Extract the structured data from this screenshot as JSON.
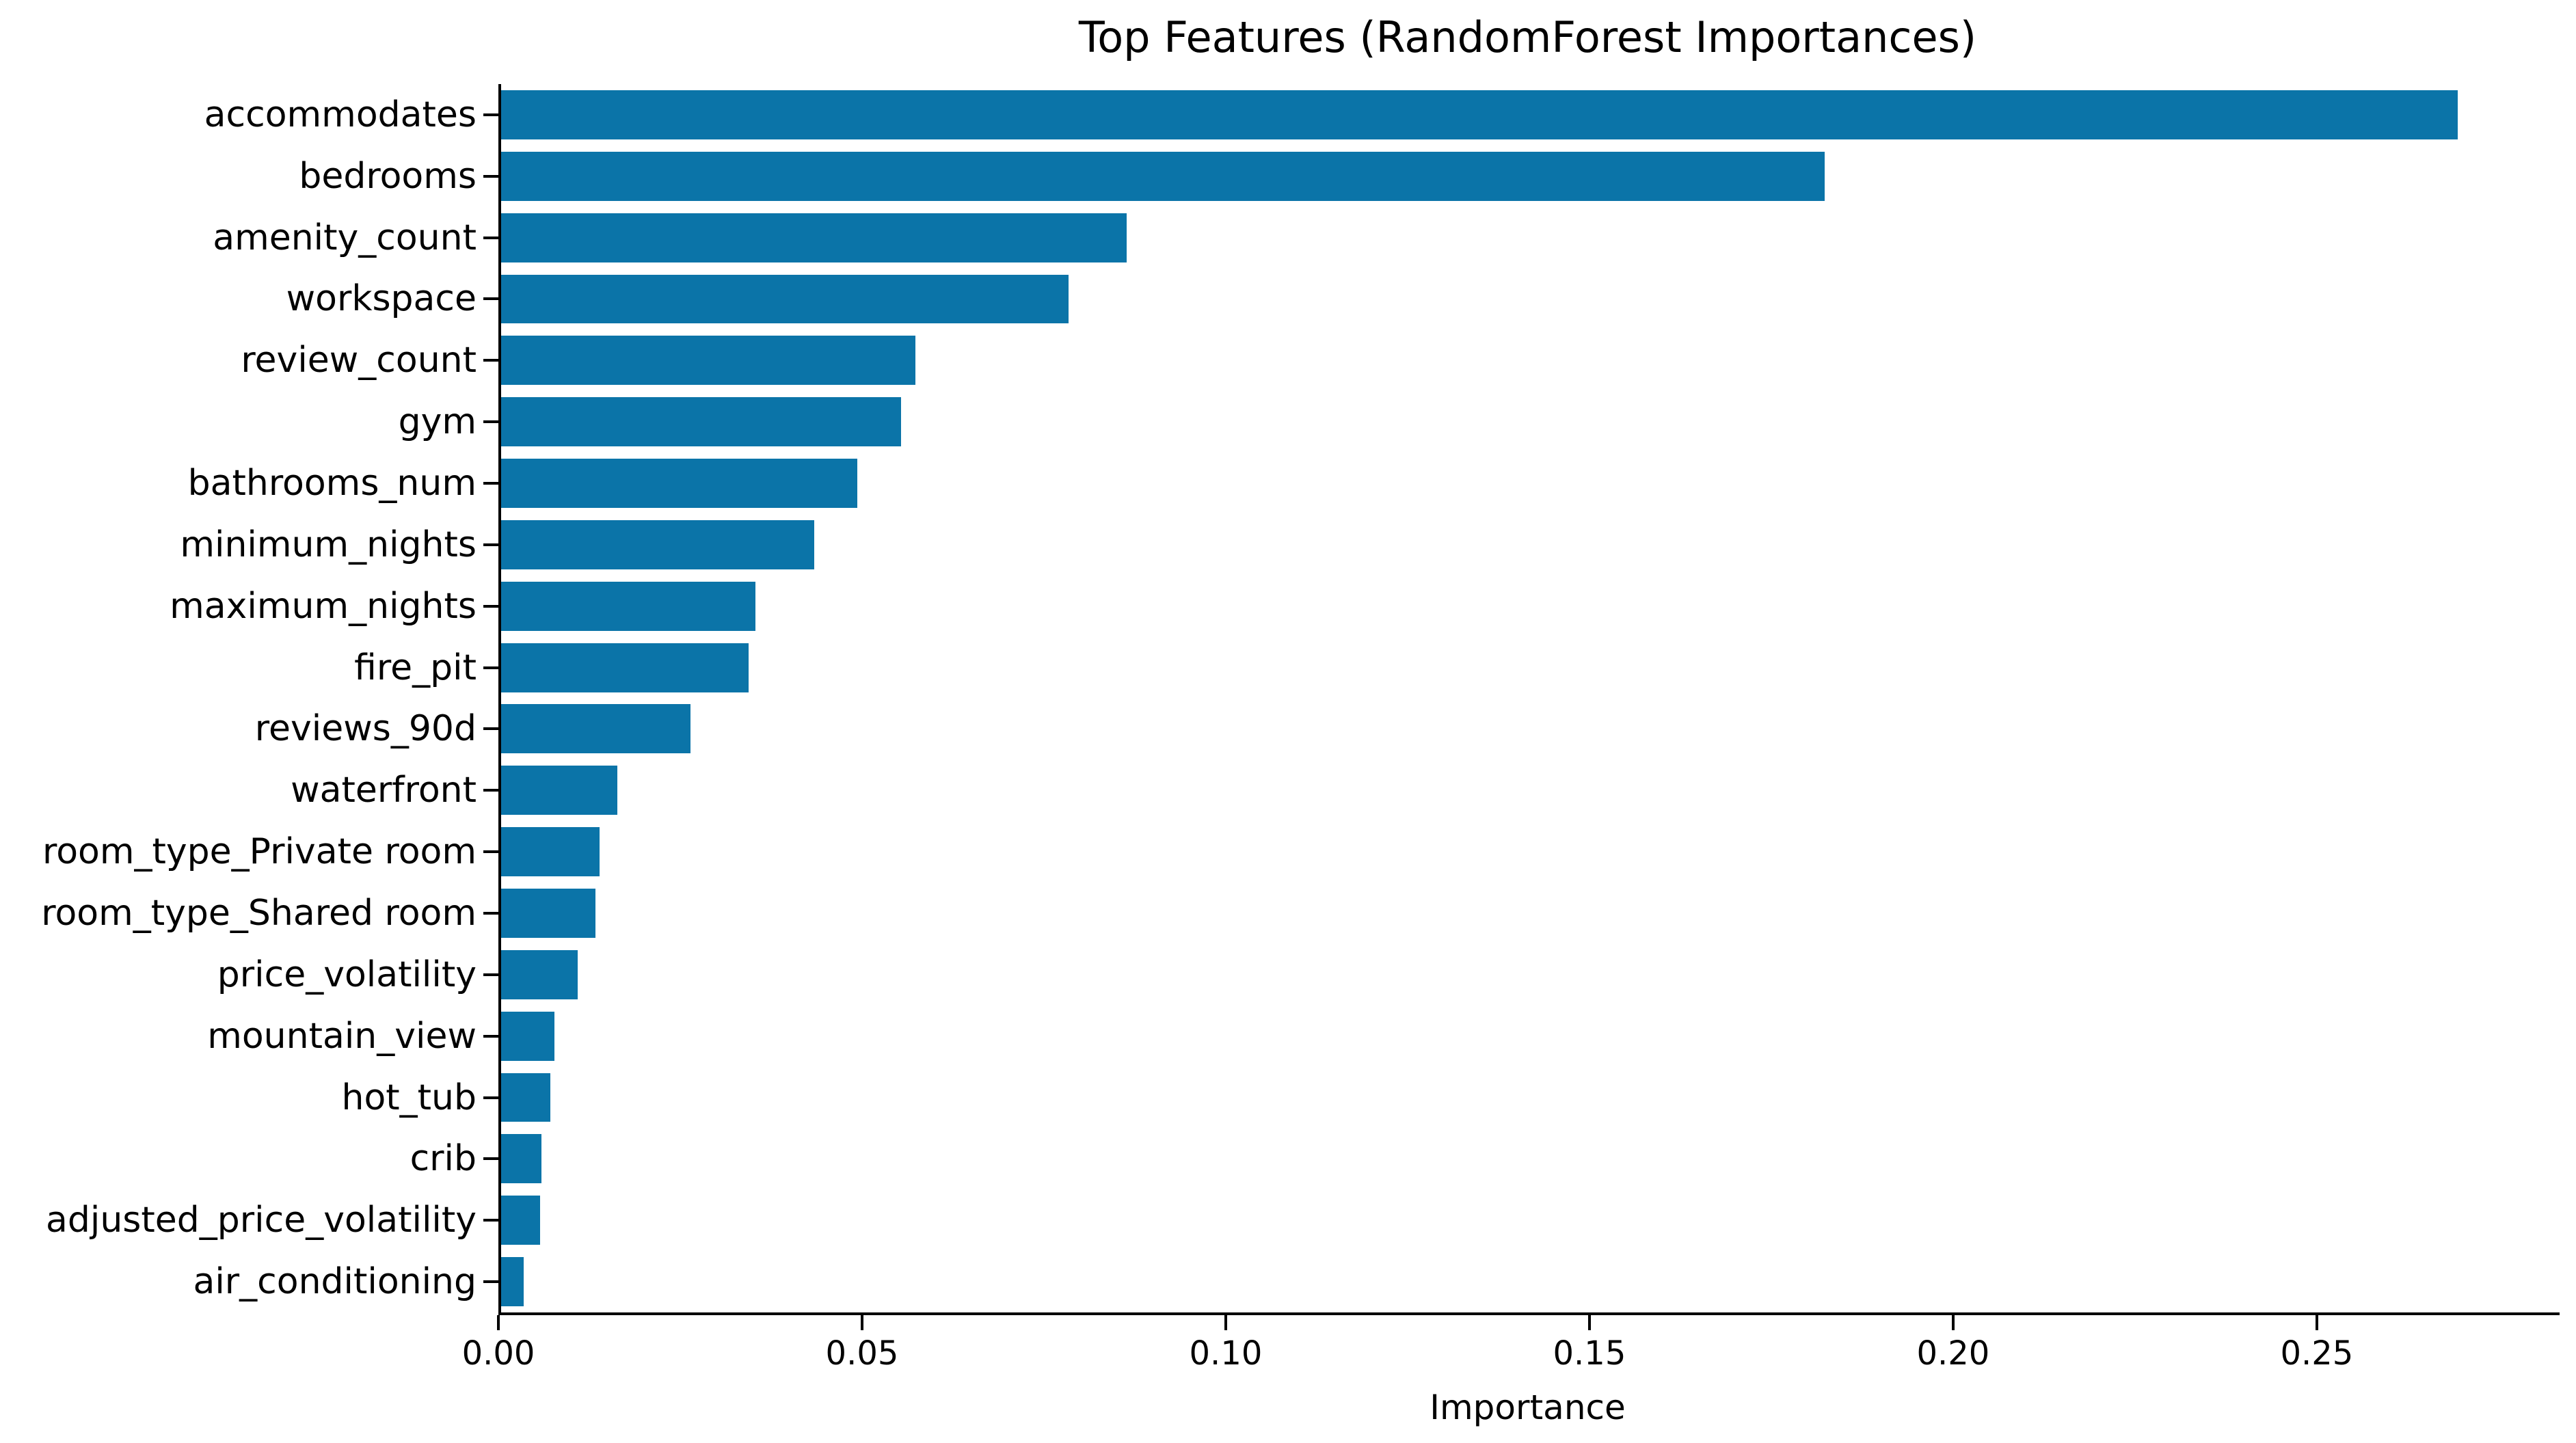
{
  "chart_data": {
    "type": "bar",
    "orientation": "horizontal",
    "title": "Top Features (RandomForest Importances)",
    "xlabel": "Importance",
    "ylabel": "",
    "categories": [
      "accommodates",
      "bedrooms",
      "amenity_count",
      "workspace",
      "review_count",
      "gym",
      "bathrooms_num",
      "minimum_nights",
      "maximum_nights",
      "fire_pit",
      "reviews_90d",
      "waterfront",
      "room_type_Private room",
      "room_type_Shared room",
      "price_volatility",
      "mountain_view",
      "hot_tub",
      "crib",
      "adjusted_price_volatility",
      "air_conditioning"
    ],
    "values": [
      0.269,
      0.182,
      0.086,
      0.078,
      0.057,
      0.055,
      0.049,
      0.043,
      0.035,
      0.034,
      0.026,
      0.016,
      0.0135,
      0.013,
      0.0105,
      0.0073,
      0.0068,
      0.0055,
      0.0054,
      0.0031
    ],
    "xlim": [
      0,
      0.283
    ],
    "xticks": [
      0.0,
      0.05,
      0.1,
      0.15,
      0.2,
      0.25
    ],
    "xtick_labels": [
      "0.00",
      "0.05",
      "0.10",
      "0.15",
      "0.20",
      "0.25"
    ],
    "bar_color": "#0b74a8",
    "axis_color": "#000000",
    "background_color": "#ffffff",
    "grid": false,
    "legend": null
  }
}
